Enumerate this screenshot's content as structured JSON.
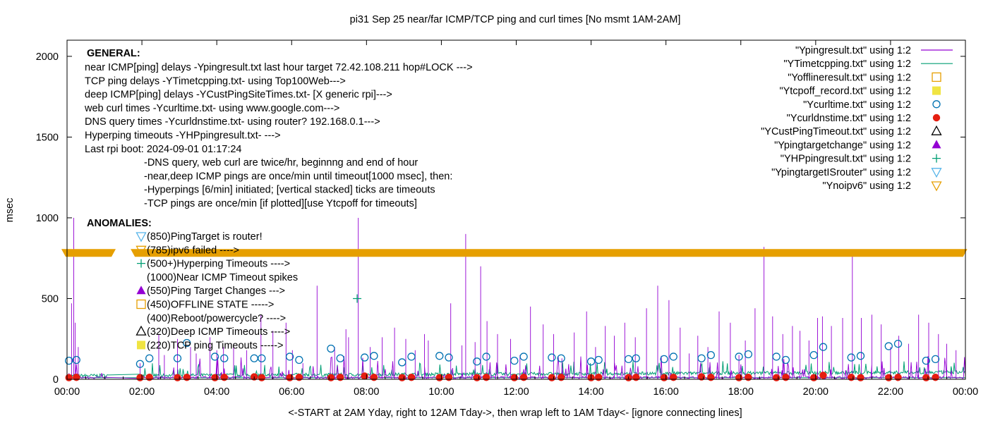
{
  "chart_data": {
    "type": "line",
    "title": "pi31 Sep 25  near/far ICMP/TCP ping and curl times [No msmt 1AM-2AM]",
    "xlabel": "<-START at 2AM Yday, right to 12AM Tday->, then wrap left to 1AM Tday<- [ignore connecting lines]",
    "ylabel": "msec",
    "xlim": [
      0,
      24
    ],
    "ylim": [
      0,
      2100
    ],
    "xticks": [
      "00:00",
      "02:00",
      "04:00",
      "06:00",
      "08:00",
      "10:00",
      "12:00",
      "14:00",
      "16:00",
      "18:00",
      "20:00",
      "22:00",
      "00:00"
    ],
    "yticks": [
      "0",
      "500",
      "1000",
      "1500",
      "2000"
    ],
    "legend_position": "top-right",
    "colors": {
      "ping": "#9400d3",
      "tcp": "#009e73",
      "curl": "#0072b2",
      "dns": "#e51e10",
      "noipv6": "#e69f00",
      "tcpoff": "#f0e442",
      "offline": "#e69f00",
      "hyper": "#009e73"
    },
    "legend": [
      {
        "label": "\"Ypingresult.txt\" using 1:2",
        "kind": "line",
        "color": "#9400d3"
      },
      {
        "label": "\"YTimetcpping.txt\" using 1:2",
        "kind": "line",
        "color": "#009e73"
      },
      {
        "label": "\"Yofflineresult.txt\" using 1:2",
        "kind": "square-open",
        "color": "#e69f00"
      },
      {
        "label": "\"Ytcpoff_record.txt\" using 1:2",
        "kind": "square-filled",
        "color": "#f0e442"
      },
      {
        "label": "\"Ycurltime.txt\" using 1:2",
        "kind": "circle-open",
        "color": "#0072b2"
      },
      {
        "label": "\"Ycurldnstime.txt\" using 1:2",
        "kind": "circle-filled",
        "color": "#e51e10"
      },
      {
        "label": "\"YCustPingTimeout.txt\" using 1:2",
        "kind": "triangle-open",
        "color": "#000000"
      },
      {
        "label": "\"Ypingtargetchange\" using 1:2",
        "kind": "triangle-filled",
        "color": "#9400d3"
      },
      {
        "label": "\"YHPpingresult.txt\" using 1:2",
        "kind": "plus",
        "color": "#009e73"
      },
      {
        "label": "\"YpingtargetISrouter\" using 1:2",
        "kind": "triangle-down-open",
        "color": "#56b4e9"
      },
      {
        "label": "\"Ynoipv6\" using 1:2",
        "kind": "triangle-down-open",
        "color": "#e69f00"
      }
    ],
    "general_title": "GENERAL:",
    "general_lines": [
      "near ICMP[ping] delays -Ypingresult.txt last hour target 72.42.108.211 hop#LOCK --->",
      "TCP ping delays -YTimetcpping.txt- using Top100Web--->",
      "deep ICMP[ping] delays -YCustPingSiteTimes.txt- [X generic rpi]--->",
      "web curl times -Ycurltime.txt- using www.google.com--->",
      "DNS query times -Ycurldnstime.txt- using router? 192.168.0.1--->",
      "Hyperping timeouts -YHPpingresult.txt- --->",
      "Last rpi boot: 2024-09-01 01:17:24"
    ],
    "notes": [
      "-DNS query, web curl are twice/hr, beginnng and end of hour",
      "-near,deep ICMP pings are once/min until timeout[1000 msec], then:",
      "  -Hyperpings [6/min] initiated; [vertical stacked] ticks are timeouts",
      "-TCP pings are once/min [if plotted][use Ytcpoff for timeouts]"
    ],
    "anomalies_title": "ANOMALIES:",
    "anomalies": [
      {
        "text": "(850)PingTarget is router!",
        "kind": "triangle-down-open",
        "color": "#56b4e9"
      },
      {
        "text": "(785)ipv6 failed ---->",
        "kind": "triangle-down-open",
        "color": "#e69f00"
      },
      {
        "text": "(500+)Hyperping Timeouts ---->",
        "kind": "plus",
        "color": "#009e73"
      },
      {
        "text": "(1000)Near ICMP Timeout spikes",
        "kind": "none",
        "color": "#000000"
      },
      {
        "text": "(550)Ping Target Changes --->",
        "kind": "triangle-filled",
        "color": "#9400d3"
      },
      {
        "text": "(450)OFFLINE STATE ----->",
        "kind": "square-open",
        "color": "#e69f00"
      },
      {
        "text": "(400)Reboot/powercycle? ---->",
        "kind": "none",
        "color": "#000000"
      },
      {
        "text": "(320)Deep ICMP Timeouts ---->",
        "kind": "triangle-open",
        "color": "#000000"
      },
      {
        "text": "(220)TCP ping Timeouts ----->",
        "kind": "square-filled",
        "color": "#f0e442"
      }
    ],
    "noipv6_band": {
      "y": 785,
      "gaps": [
        [
          1.15,
          1.85
        ],
        [
          23.9,
          24.0
        ]
      ]
    },
    "hyperping_points": [
      {
        "x": 7.75,
        "y": 500
      }
    ],
    "curl_times": [
      [
        0.05,
        115
      ],
      [
        0.25,
        120
      ],
      [
        1.95,
        95
      ],
      [
        2.2,
        130
      ],
      [
        2.95,
        130
      ],
      [
        3.2,
        225
      ],
      [
        3.95,
        140
      ],
      [
        4.2,
        130
      ],
      [
        5.0,
        130
      ],
      [
        5.2,
        130
      ],
      [
        5.95,
        140
      ],
      [
        6.2,
        120
      ],
      [
        7.05,
        190
      ],
      [
        7.3,
        130
      ],
      [
        7.95,
        135
      ],
      [
        8.2,
        145
      ],
      [
        8.95,
        105
      ],
      [
        9.2,
        140
      ],
      [
        9.95,
        145
      ],
      [
        10.2,
        135
      ],
      [
        10.95,
        110
      ],
      [
        11.2,
        140
      ],
      [
        11.95,
        115
      ],
      [
        12.2,
        140
      ],
      [
        12.95,
        135
      ],
      [
        13.2,
        130
      ],
      [
        14.0,
        110
      ],
      [
        14.2,
        120
      ],
      [
        15.0,
        125
      ],
      [
        15.2,
        130
      ],
      [
        15.95,
        125
      ],
      [
        16.2,
        140
      ],
      [
        16.95,
        130
      ],
      [
        17.2,
        150
      ],
      [
        17.95,
        140
      ],
      [
        18.2,
        155
      ],
      [
        18.95,
        140
      ],
      [
        19.2,
        120
      ],
      [
        19.95,
        150
      ],
      [
        20.2,
        200
      ],
      [
        20.95,
        135
      ],
      [
        21.2,
        145
      ],
      [
        21.95,
        205
      ],
      [
        22.2,
        220
      ],
      [
        22.95,
        115
      ],
      [
        23.2,
        125
      ]
    ],
    "dns_times": [
      [
        0.05,
        10
      ],
      [
        0.25,
        12
      ],
      [
        1.95,
        10
      ],
      [
        2.2,
        12
      ],
      [
        2.95,
        10
      ],
      [
        3.2,
        12
      ],
      [
        3.95,
        10
      ],
      [
        4.2,
        12
      ],
      [
        5.0,
        15
      ],
      [
        5.2,
        10
      ],
      [
        5.95,
        10
      ],
      [
        6.2,
        12
      ],
      [
        7.05,
        10
      ],
      [
        7.3,
        12
      ],
      [
        7.95,
        20
      ],
      [
        8.2,
        12
      ],
      [
        8.95,
        10
      ],
      [
        9.2,
        12
      ],
      [
        9.95,
        10
      ],
      [
        10.2,
        12
      ],
      [
        10.95,
        10
      ],
      [
        11.2,
        12
      ],
      [
        11.95,
        10
      ],
      [
        12.2,
        12
      ],
      [
        12.95,
        10
      ],
      [
        13.2,
        12
      ],
      [
        14.0,
        10
      ],
      [
        14.2,
        12
      ],
      [
        15.0,
        10
      ],
      [
        15.2,
        12
      ],
      [
        15.95,
        10
      ],
      [
        16.2,
        12
      ],
      [
        16.95,
        15
      ],
      [
        17.2,
        12
      ],
      [
        17.95,
        10
      ],
      [
        18.2,
        12
      ],
      [
        18.95,
        10
      ],
      [
        19.2,
        12
      ],
      [
        19.95,
        10
      ],
      [
        20.2,
        25
      ],
      [
        20.95,
        12
      ],
      [
        21.2,
        10
      ],
      [
        21.95,
        10
      ],
      [
        22.2,
        12
      ],
      [
        22.95,
        10
      ],
      [
        23.2,
        12
      ]
    ],
    "ping_spikes": [
      [
        0.12,
        470
      ],
      [
        0.18,
        1000
      ],
      [
        0.22,
        350
      ],
      [
        0.3,
        200
      ],
      [
        1.95,
        100
      ],
      [
        2.45,
        280
      ],
      [
        2.6,
        150
      ],
      [
        2.95,
        250
      ],
      [
        3.3,
        200
      ],
      [
        3.45,
        160
      ],
      [
        3.82,
        260
      ],
      [
        4.0,
        180
      ],
      [
        4.18,
        200
      ],
      [
        4.45,
        220
      ],
      [
        4.8,
        180
      ],
      [
        5.18,
        400
      ],
      [
        5.5,
        300
      ],
      [
        5.85,
        350
      ],
      [
        6.02,
        180
      ],
      [
        6.3,
        100
      ],
      [
        6.68,
        580
      ],
      [
        7.15,
        200
      ],
      [
        7.45,
        310
      ],
      [
        7.52,
        260
      ],
      [
        7.78,
        1000
      ],
      [
        8.1,
        200
      ],
      [
        8.42,
        260
      ],
      [
        8.75,
        320
      ],
      [
        9.05,
        250
      ],
      [
        9.3,
        180
      ],
      [
        9.55,
        280
      ],
      [
        9.65,
        240
      ],
      [
        10.25,
        470
      ],
      [
        10.55,
        210
      ],
      [
        10.65,
        900
      ],
      [
        10.9,
        230
      ],
      [
        11.05,
        700
      ],
      [
        11.22,
        360
      ],
      [
        11.5,
        280
      ],
      [
        11.85,
        250
      ],
      [
        12.1,
        150
      ],
      [
        12.38,
        450
      ],
      [
        12.72,
        340
      ],
      [
        13.0,
        280
      ],
      [
        13.22,
        130
      ],
      [
        13.55,
        290
      ],
      [
        13.88,
        420
      ],
      [
        14.12,
        200
      ],
      [
        14.38,
        330
      ],
      [
        14.62,
        270
      ],
      [
        14.9,
        350
      ],
      [
        15.18,
        260
      ],
      [
        15.48,
        440
      ],
      [
        15.78,
        580
      ],
      [
        16.08,
        490
      ],
      [
        16.38,
        320
      ],
      [
        16.62,
        160
      ],
      [
        16.85,
        270
      ],
      [
        17.12,
        200
      ],
      [
        17.42,
        420
      ],
      [
        17.72,
        350
      ],
      [
        17.95,
        150
      ],
      [
        18.12,
        240
      ],
      [
        18.38,
        440
      ],
      [
        18.62,
        820
      ],
      [
        18.85,
        390
      ],
      [
        19.12,
        280
      ],
      [
        19.38,
        330
      ],
      [
        19.58,
        300
      ],
      [
        19.82,
        240
      ],
      [
        20.05,
        380
      ],
      [
        20.18,
        390
      ],
      [
        20.42,
        330
      ],
      [
        20.72,
        380
      ],
      [
        20.98,
        780
      ],
      [
        21.22,
        380
      ],
      [
        21.5,
        400
      ],
      [
        21.75,
        340
      ],
      [
        22.0,
        200
      ],
      [
        22.22,
        270
      ],
      [
        22.48,
        220
      ],
      [
        22.75,
        400
      ],
      [
        23.02,
        350
      ],
      [
        23.28,
        280
      ],
      [
        23.5,
        220
      ],
      [
        23.75,
        180
      ]
    ]
  }
}
